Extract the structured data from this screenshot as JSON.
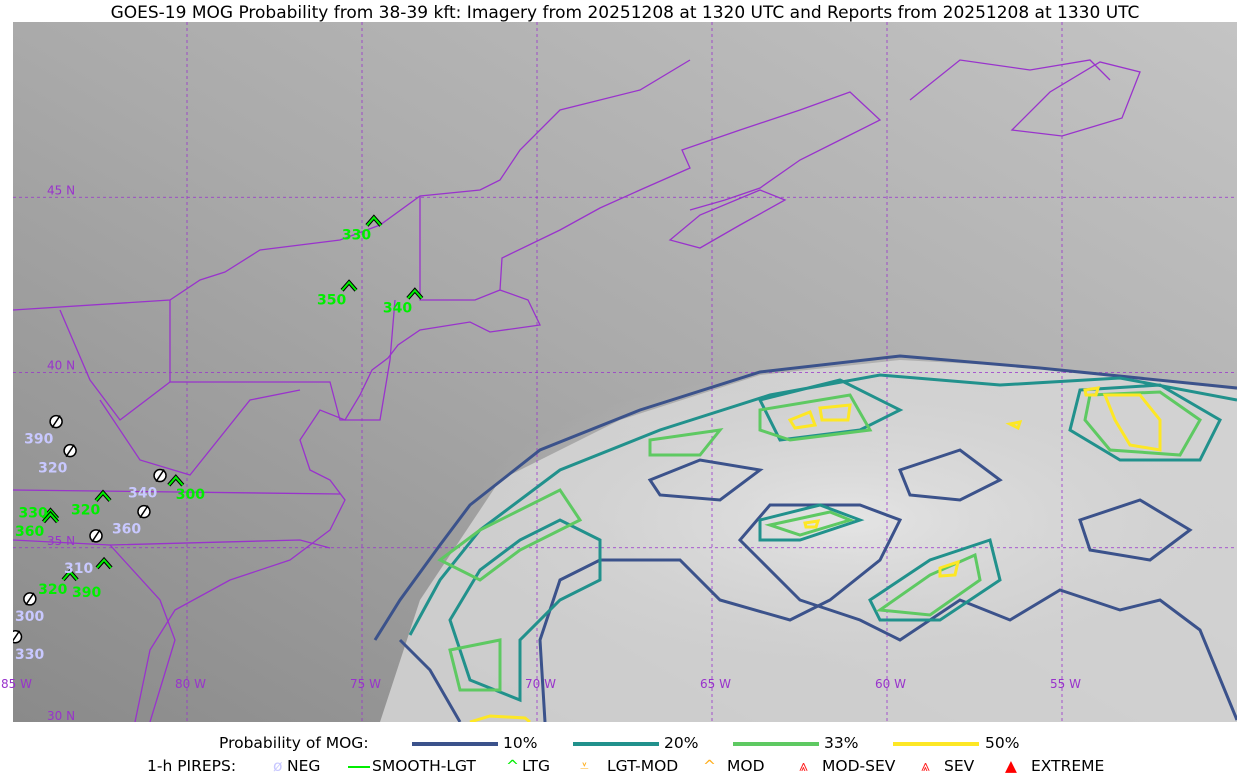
{
  "title": "GOES-19 MOG Probability from 38-39 kft: Imagery from 20251208 at 1320 UTC and Reports from 20251208 at 1330 UTC",
  "map": {
    "extent": {
      "lon": [
        -85,
        -50
      ],
      "lat": [
        30,
        50
      ]
    },
    "boundary_color": "#9933cc",
    "grid_color": "#9933cc",
    "lon_labels": [
      "85 W",
      "80 W",
      "75 W",
      "70 W",
      "65 W",
      "60 W",
      "55 W"
    ],
    "lons": [
      -85,
      -80,
      -75,
      -70,
      -65,
      -60,
      -55
    ],
    "lat_labels": [
      "45 N",
      "40 N",
      "35 N",
      "30 N"
    ],
    "lats": [
      45,
      40,
      35,
      30
    ]
  },
  "legend": {
    "prob_label": "Probability of MOG:",
    "levels": [
      {
        "label": "10%",
        "color": "#3b528b"
      },
      {
        "label": "20%",
        "color": "#21918c"
      },
      {
        "label": "33%",
        "color": "#5ec962"
      },
      {
        "label": "50%",
        "color": "#fde725"
      }
    ],
    "pirep_label": "1-h PIREPS:",
    "pireps": [
      {
        "label": "NEG",
        "color": "#c8c8ff",
        "icon": "neg-circle-slash"
      },
      {
        "label": "SMOOTH-LGT",
        "color": "#00ee00",
        "icon": "line"
      },
      {
        "label": "LTG",
        "color": "#00ee00",
        "icon": "caret"
      },
      {
        "label": "LGT-MOD",
        "color": "#ffb020",
        "icon": "caret-bar"
      },
      {
        "label": "MOD",
        "color": "#ffb020",
        "icon": "caret"
      },
      {
        "label": "MOD-SEV",
        "color": "#ff2020",
        "icon": "double-caret"
      },
      {
        "label": "SEV",
        "color": "#ff2020",
        "icon": "double-caret"
      },
      {
        "label": "EXTREME",
        "color": "#ff0000",
        "icon": "filled-triangle"
      }
    ]
  },
  "reports": [
    {
      "type": "NEG",
      "lon": -83.74,
      "lat": 38.6,
      "alt": "390"
    },
    {
      "type": "NEG",
      "lon": -83.34,
      "lat": 37.77,
      "alt": "320"
    },
    {
      "type": "NEG",
      "lon": -80.77,
      "lat": 37.06,
      "alt": "340"
    },
    {
      "type": "NEG",
      "lon": -81.23,
      "lat": 36.03,
      "alt": "360"
    },
    {
      "type": "NEG",
      "lon": -82.6,
      "lat": 35.34,
      "alt": "310"
    },
    {
      "type": "NEG",
      "lon": -84.49,
      "lat": 33.54,
      "alt": "300"
    },
    {
      "type": "NEG",
      "lon": -84.9,
      "lat": 32.46,
      "alt": "330"
    },
    {
      "type": "LTG",
      "lon": -74.66,
      "lat": 44.31,
      "alt": "330"
    },
    {
      "type": "LTG",
      "lon": -75.37,
      "lat": 42.46,
      "alt": "350"
    },
    {
      "type": "LTG",
      "lon": -73.49,
      "lat": 42.23,
      "alt": "340"
    },
    {
      "type": "LTG",
      "lon": -82.4,
      "lat": 36.46,
      "alt": "320"
    },
    {
      "type": "LTG",
      "lon": -80.32,
      "lat": 36.9,
      "alt": "300"
    },
    {
      "type": "LTG",
      "lon": -83.9,
      "lat": 35.95,
      "alt": "330"
    },
    {
      "type": "LTG",
      "lon": -83.9,
      "lat": 35.85,
      "alt": "360"
    },
    {
      "type": "LTG",
      "lon": -82.37,
      "lat": 34.54,
      "alt": "390"
    },
    {
      "type": "LTG",
      "lon": -83.34,
      "lat": 34.2,
      "alt": "320"
    }
  ]
}
